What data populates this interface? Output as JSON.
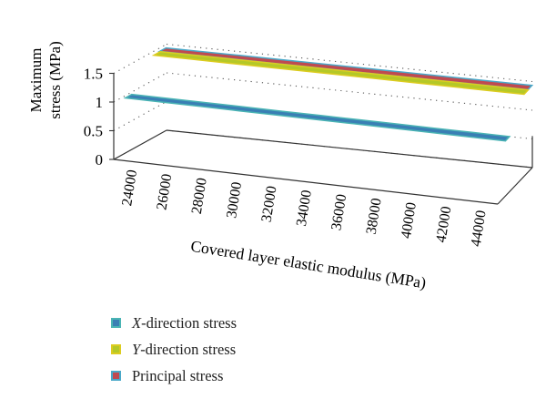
{
  "chart_data": {
    "type": "area",
    "title": "",
    "xlabel": "Covered layer elastic modulus (MPa)",
    "ylabel_lines": [
      "Maximum",
      "stress (MPa)"
    ],
    "categories": [
      "24000",
      "26000",
      "28000",
      "30000",
      "32000",
      "34000",
      "36000",
      "38000",
      "40000",
      "42000",
      "44000"
    ],
    "y_ticks": [
      "0",
      "0.5",
      "1",
      "1.5"
    ],
    "ylim": [
      0,
      1.5
    ],
    "grid": true,
    "legend_position": "bottom",
    "series": [
      {
        "name": "X-direction stress",
        "legend_var": "X",
        "legend_rest": "-direction stress",
        "color": "#3a7fb4",
        "edge": "#4ab4b4",
        "values": [
          0.96,
          0.96,
          0.96,
          0.96,
          0.96,
          0.96,
          0.96,
          0.96,
          0.96,
          0.96,
          0.96
        ]
      },
      {
        "name": "Y-direction stress",
        "legend_var": "Y",
        "legend_rest": "-direction stress",
        "color": "#b4c828",
        "edge": "#dccc20",
        "values": [
          1.43,
          1.43,
          1.43,
          1.43,
          1.43,
          1.43,
          1.43,
          1.43,
          1.43,
          1.43,
          1.43
        ]
      },
      {
        "name": "Principal stress",
        "legend_var": "",
        "legend_rest": "Principal stress",
        "color": "#c04a50",
        "edge": "#4aa8c8",
        "values": [
          1.44,
          1.44,
          1.44,
          1.44,
          1.44,
          1.44,
          1.44,
          1.44,
          1.44,
          1.44,
          1.44
        ]
      }
    ]
  }
}
